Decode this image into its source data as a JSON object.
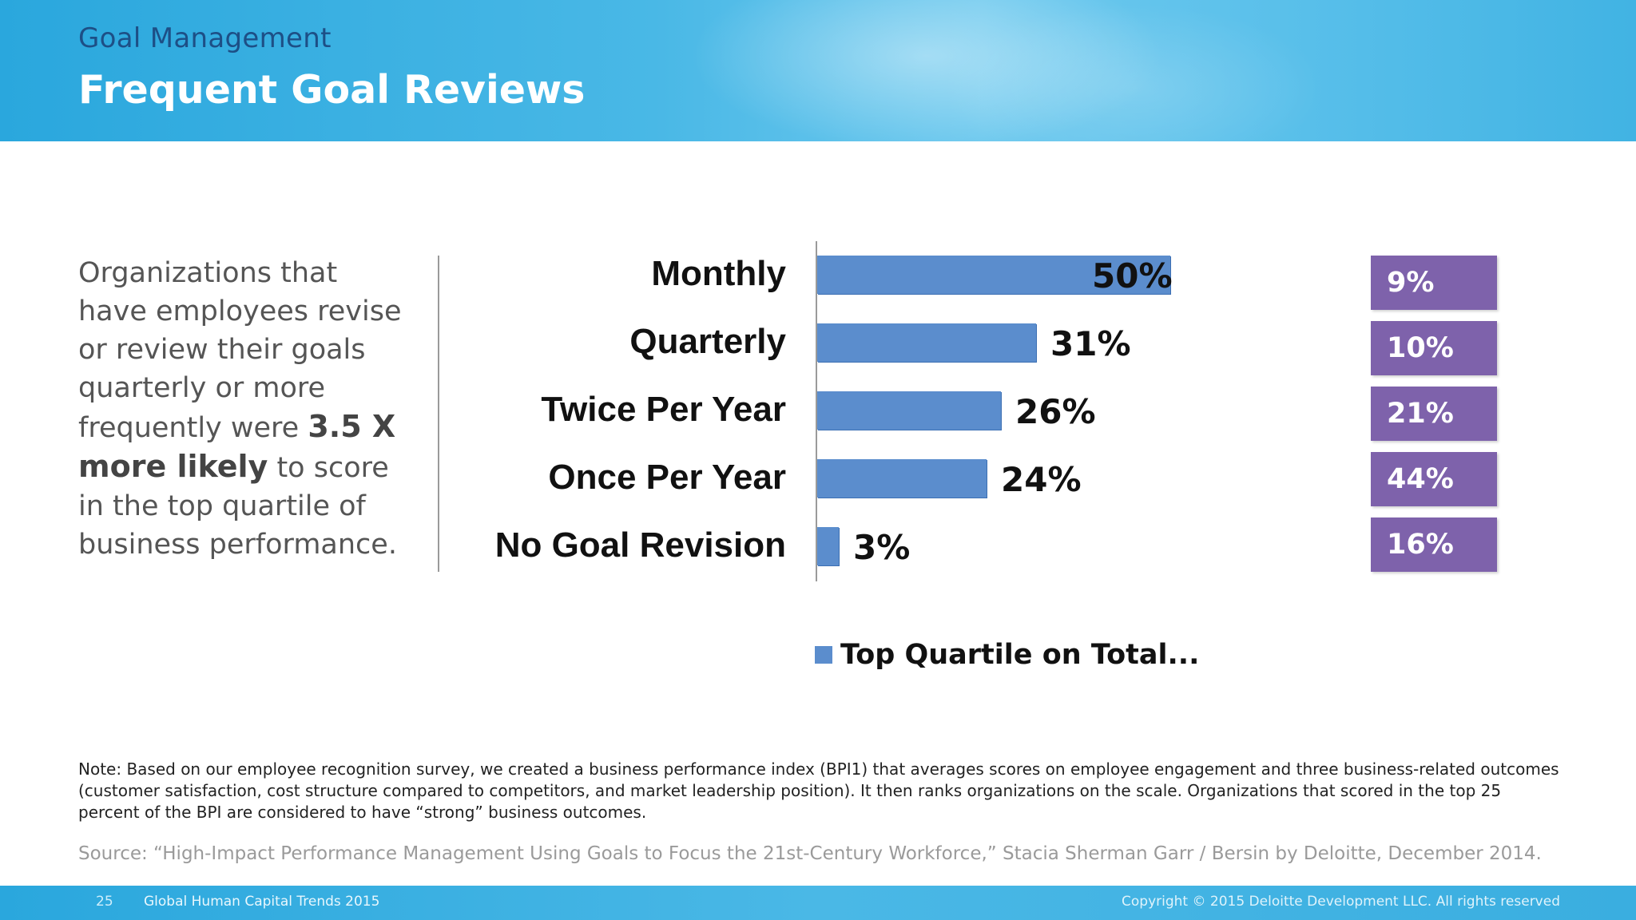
{
  "header": {
    "kicker": "Goal Management",
    "title": "Frequent Goal Reviews"
  },
  "intro": {
    "text_before": "Organizations that have employees revise or review their goals quarterly or more frequently were ",
    "emphasis": "3.5 X more likely",
    "text_after": " to score in the top quartile of business performance."
  },
  "colors": {
    "bar": "#5b8dcd",
    "purple_box": "#7e62ab",
    "header_blue": "#2aa7dd"
  },
  "chart_data": {
    "type": "bar",
    "orientation": "horizontal",
    "categories": [
      "Monthly",
      "Quarterly",
      "Twice Per Year",
      "Once Per Year",
      "No Goal Revision"
    ],
    "series": [
      {
        "name": "Top Quartile on Total...",
        "values": [
          50,
          31,
          26,
          24,
          3
        ],
        "labels": [
          "50%",
          "31%",
          "26%",
          "24%",
          "3%"
        ]
      }
    ],
    "xlim": [
      0,
      86
    ],
    "legend": "bottom",
    "grid": false
  },
  "side_values": [
    "9%",
    "10%",
    "21%",
    "44%",
    "16%"
  ],
  "note": "Note: Based on our employee recognition survey, we created a business performance index (BPI1) that averages scores on employee engagement and three business-related outcomes (customer satisfaction, cost structure compared to competitors, and market leadership position). It then ranks organizations on the scale. Organizations that scored in the top 25 percent of the BPI are considered to have “strong” business outcomes.",
  "source": "Source:  “High-Impact Performance Management Using Goals to Focus the 21st-Century Workforce,” Stacia Sherman Garr / Bersin by Deloitte, December 2014.",
  "footer": {
    "page_number": "25",
    "trend_title": "Global Human Capital Trends 2015",
    "copyright": "Copyright © 2015 Deloitte Development LLC. All rights reserved"
  }
}
